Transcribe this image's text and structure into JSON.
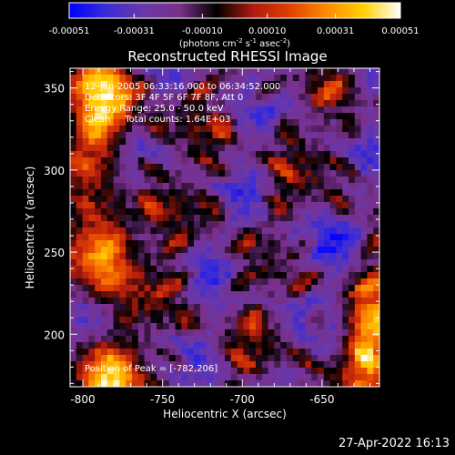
{
  "colorbar": {
    "colors": [
      "#0000ff",
      "#3a2bd8",
      "#6a38a8",
      "#7a2f8a",
      "#000000",
      "#b01a10",
      "#e04000",
      "#ff8a00",
      "#ffd000",
      "#ffffff"
    ],
    "ticks": [
      "-0.00051",
      "-0.00031",
      "-0.00010",
      "0.00010",
      "0.00031",
      "0.00051"
    ],
    "range": [
      -0.00051,
      0.00051
    ],
    "unit": "(photons cm",
    "unit_parts": [
      "(photons cm",
      "-2",
      " s",
      "-1",
      " asec",
      "-2",
      ")"
    ]
  },
  "title": "Reconstructed RHESSI Image",
  "annotations": {
    "time": "12-Jan-2005 06:33:16.000 to 06:34:52.000",
    "detectors": "Detectors: 3F 4F 5F 6F 7F 8F, Att 0",
    "energy": "Energy Range: 25.0 - 50.0 keV",
    "clean": "Clean     Total counts: 1.64E+03",
    "peak": "Position of Peak = [-782,206]"
  },
  "footer": {
    "timestamp": "27-Apr-2022 16:13"
  },
  "chart_data": {
    "type": "heatmap",
    "title": "Reconstructed RHESSI Image",
    "xlabel": "Heliocentric X (arcsec)",
    "ylabel": "Heliocentric Y (arcsec)",
    "xlim": [
      -808,
      -614
    ],
    "ylim": [
      168,
      362
    ],
    "xticks": [
      -800,
      -750,
      -700,
      -650
    ],
    "yticks": [
      200,
      250,
      300,
      350
    ],
    "xtick_labels": [
      "-800",
      "-750",
      "-700",
      "-650"
    ],
    "ytick_labels": [
      "200",
      "250",
      "300",
      "350"
    ],
    "peak": [
      -782,
      206
    ],
    "color_range": [
      -0.00051,
      0.00051
    ]
  }
}
